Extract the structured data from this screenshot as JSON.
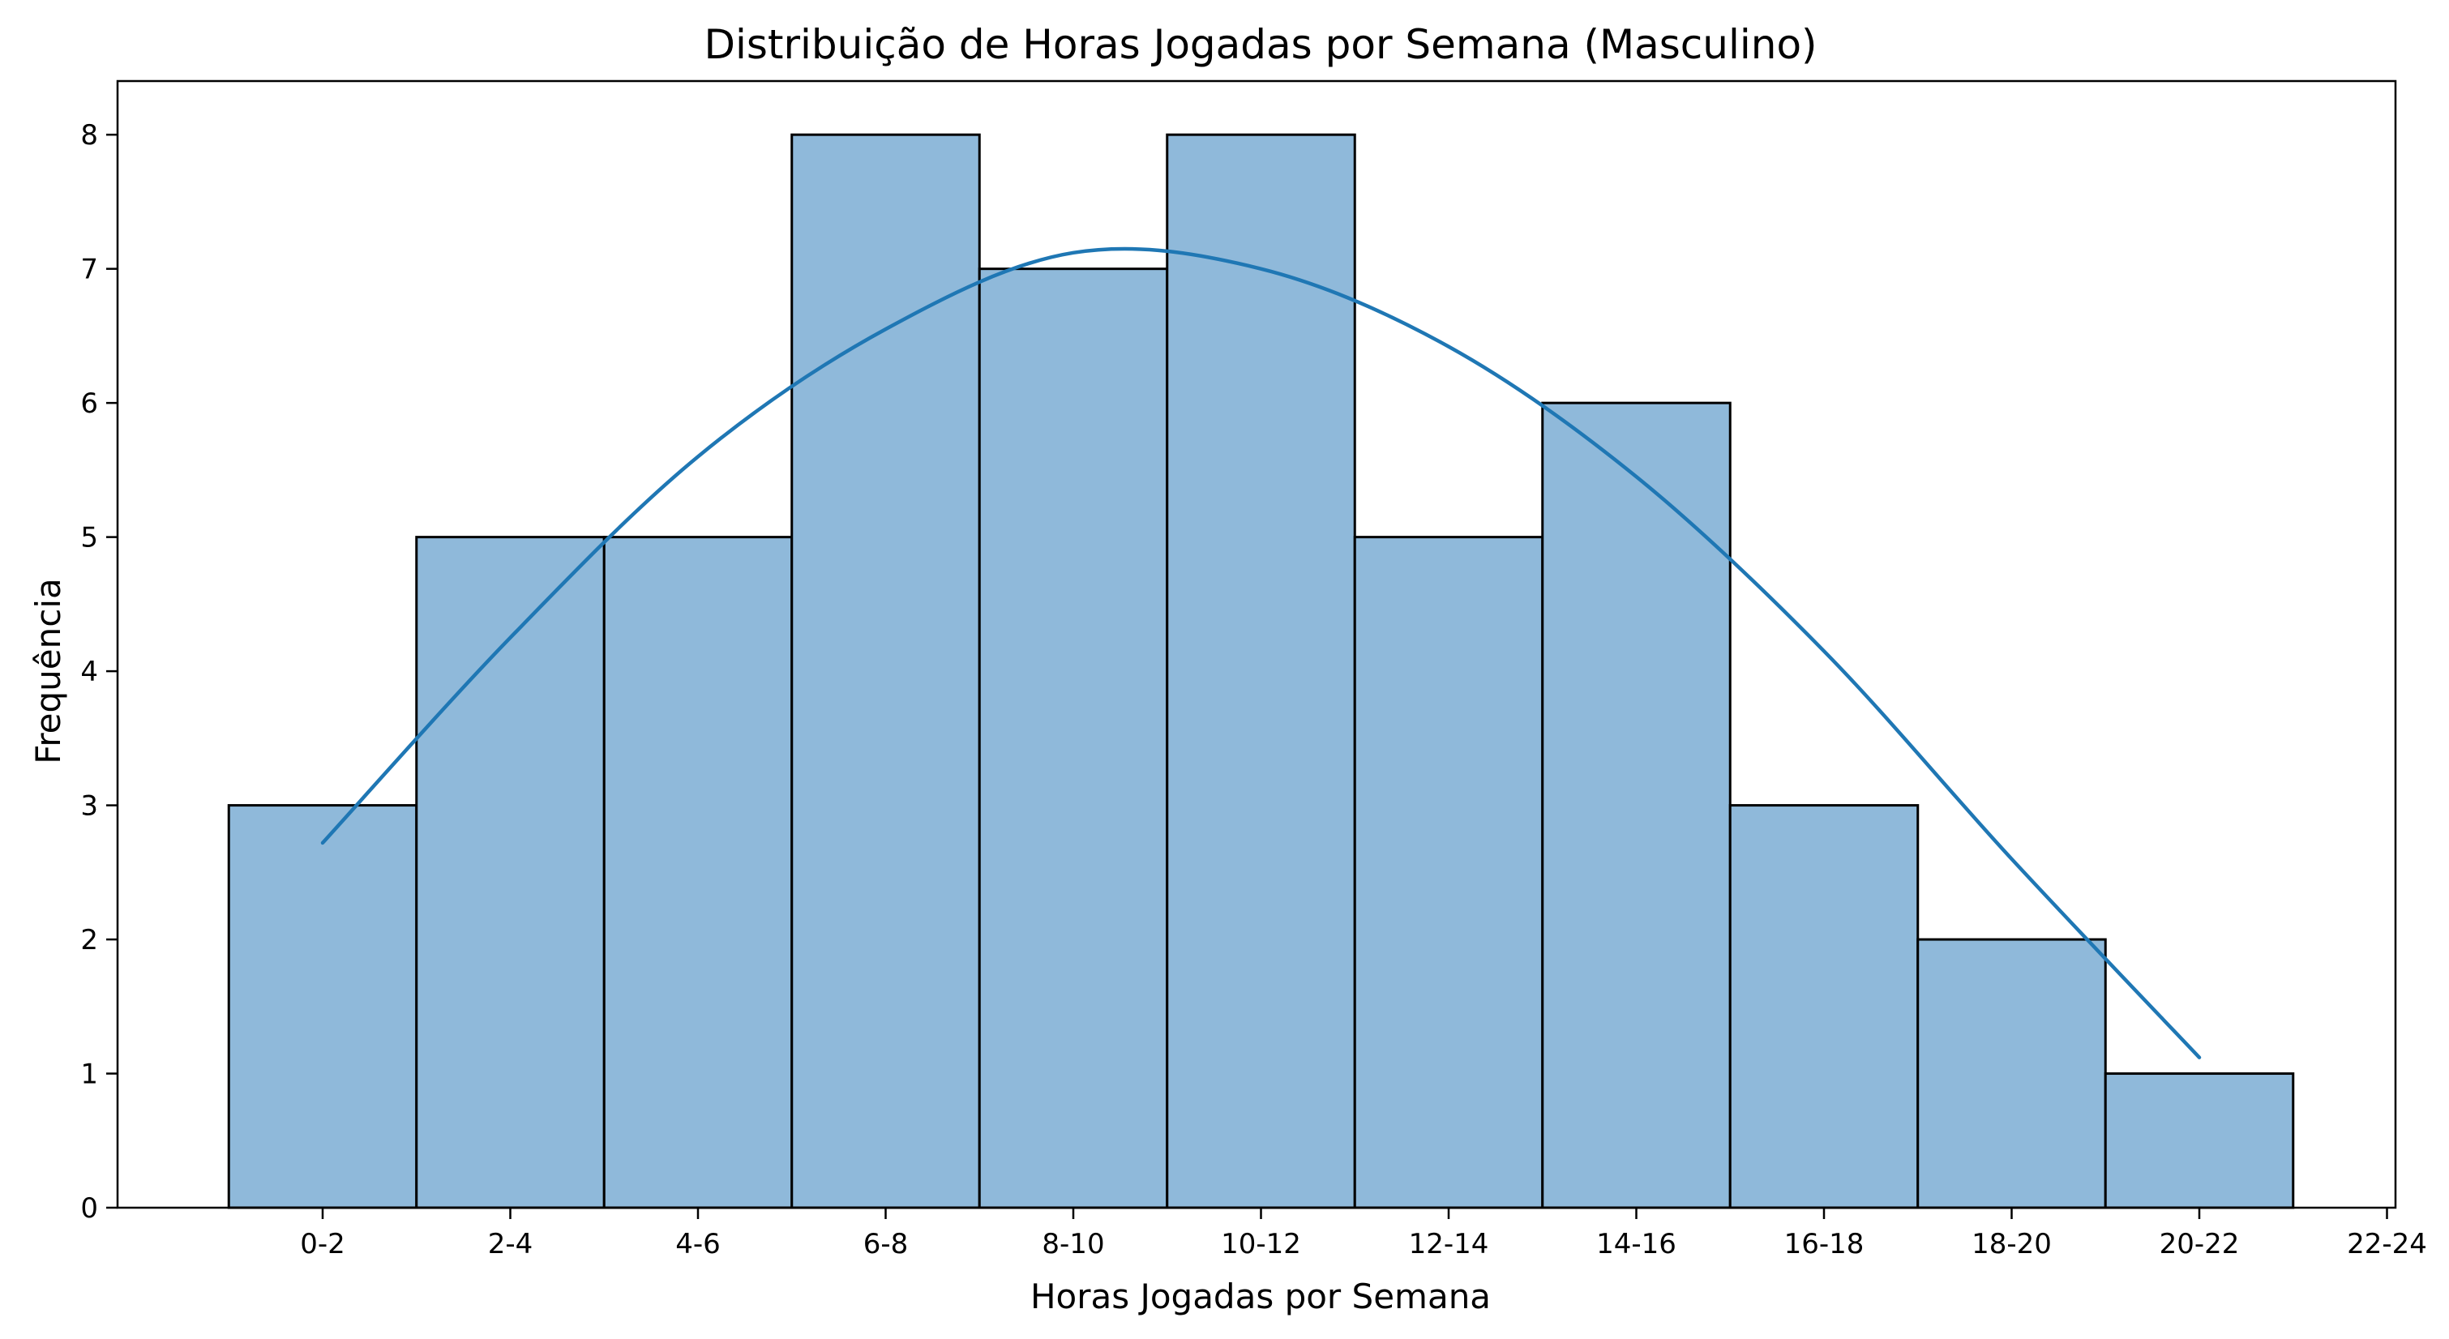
{
  "chart_data": {
    "type": "bar",
    "title": "Distribuição de Horas Jogadas por Semana (Masculino)",
    "xlabel": "Horas Jogadas por Semana",
    "ylabel": "Frequência",
    "categories": [
      "0-2",
      "2-4",
      "4-6",
      "6-8",
      "8-10",
      "10-12",
      "12-14",
      "14-16",
      "16-18",
      "18-20",
      "20-22"
    ],
    "values": [
      3,
      5,
      5,
      8,
      7,
      8,
      5,
      6,
      3,
      2,
      1
    ],
    "x_tick_labels": [
      "0-2",
      "2-4",
      "4-6",
      "6-8",
      "8-10",
      "10-12",
      "12-14",
      "14-16",
      "16-18",
      "18-20",
      "20-22",
      "22-24"
    ],
    "y_ticks": [
      0,
      1,
      2,
      3,
      4,
      5,
      6,
      7,
      8
    ],
    "ylim": [
      0,
      8.4
    ],
    "grid": false,
    "kde_curve": {
      "x_index": [
        0,
        1,
        2,
        3,
        4,
        5,
        6,
        7,
        8,
        9,
        10
      ],
      "y": [
        2.72,
        4.25,
        5.6,
        6.55,
        7.12,
        7.0,
        6.42,
        5.45,
        4.15,
        2.6,
        1.12
      ],
      "color": "#1f77b4"
    },
    "bar_color": "#8fb9da",
    "edge_color": "#000000"
  }
}
